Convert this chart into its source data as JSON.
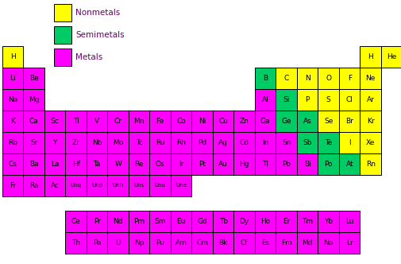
{
  "colors": {
    "nonmetal": "#FFFF00",
    "semimetal": "#00CC66",
    "metal": "#FF00FF",
    "white": "#FFFFFF",
    "text_color": "#660066",
    "border": "#000000"
  },
  "elements": [
    {
      "symbol": "H",
      "row": 0,
      "col": 0,
      "type": "nonmetal"
    },
    {
      "symbol": "H",
      "row": 0,
      "col": 17,
      "type": "nonmetal"
    },
    {
      "symbol": "He",
      "row": 0,
      "col": 18,
      "type": "nonmetal"
    },
    {
      "symbol": "Li",
      "row": 1,
      "col": 0,
      "type": "metal"
    },
    {
      "symbol": "Be",
      "row": 1,
      "col": 1,
      "type": "metal"
    },
    {
      "symbol": "B",
      "row": 1,
      "col": 12,
      "type": "semimetal"
    },
    {
      "symbol": "C",
      "row": 1,
      "col": 13,
      "type": "nonmetal"
    },
    {
      "symbol": "N",
      "row": 1,
      "col": 14,
      "type": "nonmetal"
    },
    {
      "symbol": "O",
      "row": 1,
      "col": 15,
      "type": "nonmetal"
    },
    {
      "symbol": "F",
      "row": 1,
      "col": 16,
      "type": "nonmetal"
    },
    {
      "symbol": "Ne",
      "row": 1,
      "col": 17,
      "type": "nonmetal"
    },
    {
      "symbol": "Na",
      "row": 2,
      "col": 0,
      "type": "metal"
    },
    {
      "symbol": "Mg",
      "row": 2,
      "col": 1,
      "type": "metal"
    },
    {
      "symbol": "Al",
      "row": 2,
      "col": 12,
      "type": "metal"
    },
    {
      "symbol": "Si",
      "row": 2,
      "col": 13,
      "type": "semimetal"
    },
    {
      "symbol": "P",
      "row": 2,
      "col": 14,
      "type": "nonmetal"
    },
    {
      "symbol": "S",
      "row": 2,
      "col": 15,
      "type": "nonmetal"
    },
    {
      "symbol": "Cl",
      "row": 2,
      "col": 16,
      "type": "nonmetal"
    },
    {
      "symbol": "Ar",
      "row": 2,
      "col": 17,
      "type": "nonmetal"
    },
    {
      "symbol": "K",
      "row": 3,
      "col": 0,
      "type": "metal"
    },
    {
      "symbol": "Ca",
      "row": 3,
      "col": 1,
      "type": "metal"
    },
    {
      "symbol": "Sc",
      "row": 3,
      "col": 2,
      "type": "metal"
    },
    {
      "symbol": "Ti",
      "row": 3,
      "col": 3,
      "type": "metal"
    },
    {
      "symbol": "V",
      "row": 3,
      "col": 4,
      "type": "metal"
    },
    {
      "symbol": "Cr",
      "row": 3,
      "col": 5,
      "type": "metal"
    },
    {
      "symbol": "Mn",
      "row": 3,
      "col": 6,
      "type": "metal"
    },
    {
      "symbol": "Fe",
      "row": 3,
      "col": 7,
      "type": "metal"
    },
    {
      "symbol": "Co",
      "row": 3,
      "col": 8,
      "type": "metal"
    },
    {
      "symbol": "Ni",
      "row": 3,
      "col": 9,
      "type": "metal"
    },
    {
      "symbol": "Cu",
      "row": 3,
      "col": 10,
      "type": "metal"
    },
    {
      "symbol": "Zn",
      "row": 3,
      "col": 11,
      "type": "metal"
    },
    {
      "symbol": "Ga",
      "row": 3,
      "col": 12,
      "type": "metal"
    },
    {
      "symbol": "Ge",
      "row": 3,
      "col": 13,
      "type": "semimetal"
    },
    {
      "symbol": "As",
      "row": 3,
      "col": 14,
      "type": "semimetal"
    },
    {
      "symbol": "Se",
      "row": 3,
      "col": 15,
      "type": "nonmetal"
    },
    {
      "symbol": "Br",
      "row": 3,
      "col": 16,
      "type": "nonmetal"
    },
    {
      "symbol": "Kr",
      "row": 3,
      "col": 17,
      "type": "nonmetal"
    },
    {
      "symbol": "Rb",
      "row": 4,
      "col": 0,
      "type": "metal"
    },
    {
      "symbol": "Sr",
      "row": 4,
      "col": 1,
      "type": "metal"
    },
    {
      "symbol": "Y",
      "row": 4,
      "col": 2,
      "type": "metal"
    },
    {
      "symbol": "Zr",
      "row": 4,
      "col": 3,
      "type": "metal"
    },
    {
      "symbol": "Nb",
      "row": 4,
      "col": 4,
      "type": "metal"
    },
    {
      "symbol": "Mo",
      "row": 4,
      "col": 5,
      "type": "metal"
    },
    {
      "symbol": "Tc",
      "row": 4,
      "col": 6,
      "type": "metal"
    },
    {
      "symbol": "Ru",
      "row": 4,
      "col": 7,
      "type": "metal"
    },
    {
      "symbol": "Rh",
      "row": 4,
      "col": 8,
      "type": "metal"
    },
    {
      "symbol": "Pd",
      "row": 4,
      "col": 9,
      "type": "metal"
    },
    {
      "symbol": "Ag",
      "row": 4,
      "col": 10,
      "type": "metal"
    },
    {
      "symbol": "Cd",
      "row": 4,
      "col": 11,
      "type": "metal"
    },
    {
      "symbol": "In",
      "row": 4,
      "col": 12,
      "type": "metal"
    },
    {
      "symbol": "Sn",
      "row": 4,
      "col": 13,
      "type": "metal"
    },
    {
      "symbol": "Sb",
      "row": 4,
      "col": 14,
      "type": "semimetal"
    },
    {
      "symbol": "Te",
      "row": 4,
      "col": 15,
      "type": "semimetal"
    },
    {
      "symbol": "I",
      "row": 4,
      "col": 16,
      "type": "nonmetal"
    },
    {
      "symbol": "Xe",
      "row": 4,
      "col": 17,
      "type": "nonmetal"
    },
    {
      "symbol": "Cs",
      "row": 5,
      "col": 0,
      "type": "metal"
    },
    {
      "symbol": "Ba",
      "row": 5,
      "col": 1,
      "type": "metal"
    },
    {
      "symbol": "La",
      "row": 5,
      "col": 2,
      "type": "metal"
    },
    {
      "symbol": "Hf",
      "row": 5,
      "col": 3,
      "type": "metal"
    },
    {
      "symbol": "Ta",
      "row": 5,
      "col": 4,
      "type": "metal"
    },
    {
      "symbol": "W",
      "row": 5,
      "col": 5,
      "type": "metal"
    },
    {
      "symbol": "Re",
      "row": 5,
      "col": 6,
      "type": "metal"
    },
    {
      "symbol": "Os",
      "row": 5,
      "col": 7,
      "type": "metal"
    },
    {
      "symbol": "Ir",
      "row": 5,
      "col": 8,
      "type": "metal"
    },
    {
      "symbol": "Pt",
      "row": 5,
      "col": 9,
      "type": "metal"
    },
    {
      "symbol": "Au",
      "row": 5,
      "col": 10,
      "type": "metal"
    },
    {
      "symbol": "Hg",
      "row": 5,
      "col": 11,
      "type": "metal"
    },
    {
      "symbol": "Tl",
      "row": 5,
      "col": 12,
      "type": "metal"
    },
    {
      "symbol": "Pb",
      "row": 5,
      "col": 13,
      "type": "metal"
    },
    {
      "symbol": "Bi",
      "row": 5,
      "col": 14,
      "type": "metal"
    },
    {
      "symbol": "Po",
      "row": 5,
      "col": 15,
      "type": "semimetal"
    },
    {
      "symbol": "At",
      "row": 5,
      "col": 16,
      "type": "semimetal"
    },
    {
      "symbol": "Rn",
      "row": 5,
      "col": 17,
      "type": "nonmetal"
    },
    {
      "symbol": "Fr",
      "row": 6,
      "col": 0,
      "type": "metal"
    },
    {
      "symbol": "Ra",
      "row": 6,
      "col": 1,
      "type": "metal"
    },
    {
      "symbol": "Ac",
      "row": 6,
      "col": 2,
      "type": "metal"
    },
    {
      "symbol": "Unq",
      "row": 6,
      "col": 3,
      "type": "metal"
    },
    {
      "symbol": "Unp",
      "row": 6,
      "col": 4,
      "type": "metal"
    },
    {
      "symbol": "Unh",
      "row": 6,
      "col": 5,
      "type": "metal"
    },
    {
      "symbol": "Uns",
      "row": 6,
      "col": 6,
      "type": "metal"
    },
    {
      "symbol": "Uno",
      "row": 6,
      "col": 7,
      "type": "metal"
    },
    {
      "symbol": "Une",
      "row": 6,
      "col": 8,
      "type": "metal"
    },
    {
      "symbol": "Ce",
      "row": 8,
      "col": 3,
      "type": "metal"
    },
    {
      "symbol": "Pr",
      "row": 8,
      "col": 4,
      "type": "metal"
    },
    {
      "symbol": "Nd",
      "row": 8,
      "col": 5,
      "type": "metal"
    },
    {
      "symbol": "Pm",
      "row": 8,
      "col": 6,
      "type": "metal"
    },
    {
      "symbol": "Sm",
      "row": 8,
      "col": 7,
      "type": "metal"
    },
    {
      "symbol": "Eu",
      "row": 8,
      "col": 8,
      "type": "metal"
    },
    {
      "symbol": "Gd",
      "row": 8,
      "col": 9,
      "type": "metal"
    },
    {
      "symbol": "Tb",
      "row": 8,
      "col": 10,
      "type": "metal"
    },
    {
      "symbol": "Dy",
      "row": 8,
      "col": 11,
      "type": "metal"
    },
    {
      "symbol": "Ho",
      "row": 8,
      "col": 12,
      "type": "metal"
    },
    {
      "symbol": "Er",
      "row": 8,
      "col": 13,
      "type": "metal"
    },
    {
      "symbol": "Tm",
      "row": 8,
      "col": 14,
      "type": "metal"
    },
    {
      "symbol": "Yb",
      "row": 8,
      "col": 15,
      "type": "metal"
    },
    {
      "symbol": "Lu",
      "row": 8,
      "col": 16,
      "type": "metal"
    },
    {
      "symbol": "Th",
      "row": 9,
      "col": 3,
      "type": "metal"
    },
    {
      "symbol": "Pa",
      "row": 9,
      "col": 4,
      "type": "metal"
    },
    {
      "symbol": "U",
      "row": 9,
      "col": 5,
      "type": "metal"
    },
    {
      "symbol": "Np",
      "row": 9,
      "col": 6,
      "type": "metal"
    },
    {
      "symbol": "Pu",
      "row": 9,
      "col": 7,
      "type": "metal"
    },
    {
      "symbol": "Am",
      "row": 9,
      "col": 8,
      "type": "metal"
    },
    {
      "symbol": "Cm",
      "row": 9,
      "col": 9,
      "type": "metal"
    },
    {
      "symbol": "Bk",
      "row": 9,
      "col": 10,
      "type": "metal"
    },
    {
      "symbol": "Cf",
      "row": 9,
      "col": 11,
      "type": "metal"
    },
    {
      "symbol": "Es",
      "row": 9,
      "col": 12,
      "type": "metal"
    },
    {
      "symbol": "Fm",
      "row": 9,
      "col": 13,
      "type": "metal"
    },
    {
      "symbol": "Md",
      "row": 9,
      "col": 14,
      "type": "metal"
    },
    {
      "symbol": "No",
      "row": 9,
      "col": 15,
      "type": "metal"
    },
    {
      "symbol": "Lr",
      "row": 9,
      "col": 16,
      "type": "metal"
    }
  ],
  "legend": [
    {
      "label": "Nonmetals",
      "color": "#FFFF00"
    },
    {
      "label": "Semimetals",
      "color": "#00CC66"
    },
    {
      "label": "Metals",
      "color": "#FF00FF"
    }
  ],
  "ncols": 19,
  "main_rows": 7,
  "figw": 5.06,
  "figh": 3.32,
  "dpi": 100
}
